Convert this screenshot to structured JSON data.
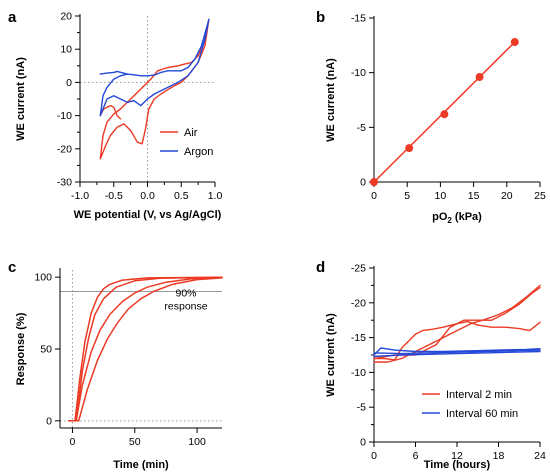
{
  "colors": {
    "red": "#ec3a25",
    "blue": "#2448d8",
    "ref": "#9a9a9a",
    "axis": "#000000"
  },
  "chart_data": [
    {
      "panel": "a",
      "type": "line",
      "xlabel": "WE potential (V, vs Ag/AgCl)",
      "ylabel": "WE current (nA)",
      "xlim": [
        -1.0,
        1.0
      ],
      "ylim": [
        -30,
        20
      ],
      "xticks": [
        -1.0,
        -0.5,
        0.0,
        0.5,
        1.0
      ],
      "xtick_labels": [
        "-1.0",
        "-0.5",
        "0.0",
        "0.5",
        "1.0"
      ],
      "yticks": [
        -30,
        -20,
        -10,
        0,
        10,
        20
      ],
      "ytick_labels": [
        "-30",
        "-20",
        "-10",
        "0",
        "10",
        "20"
      ],
      "legend": "bottom-right",
      "series": [
        {
          "name": "Air",
          "color": "red",
          "curves": [
            [
              [
                -0.7,
                -23
              ],
              [
                -0.66,
                -16
              ],
              [
                -0.6,
                -12
              ],
              [
                -0.5,
                -9.5
              ],
              [
                -0.4,
                -8
              ],
              [
                -0.3,
                -6
              ],
              [
                -0.2,
                -4
              ],
              [
                -0.1,
                -2
              ],
              [
                0.0,
                0
              ],
              [
                0.05,
                1
              ],
              [
                0.15,
                3.5
              ],
              [
                0.3,
                4.5
              ],
              [
                0.45,
                5
              ],
              [
                0.55,
                5.5
              ],
              [
                0.65,
                6
              ],
              [
                0.75,
                8
              ],
              [
                0.85,
                13
              ],
              [
                0.91,
                19
              ],
              [
                0.85,
                11
              ],
              [
                0.75,
                6
              ],
              [
                0.6,
                2
              ],
              [
                0.5,
                0
              ],
              [
                0.4,
                -1
              ],
              [
                0.3,
                -2.2
              ],
              [
                0.2,
                -3.5
              ],
              [
                0.1,
                -5
              ],
              [
                0.02,
                -8
              ],
              [
                -0.03,
                -14
              ],
              [
                -0.08,
                -18.5
              ],
              [
                -0.15,
                -18
              ],
              [
                -0.25,
                -14.5
              ],
              [
                -0.35,
                -12.5
              ],
              [
                -0.45,
                -13.5
              ],
              [
                -0.55,
                -16
              ],
              [
                -0.62,
                -19
              ],
              [
                -0.7,
                -23
              ]
            ],
            [
              [
                -0.7,
                -10
              ],
              [
                -0.65,
                -8
              ],
              [
                -0.55,
                -7
              ],
              [
                -0.5,
                -7.5
              ],
              [
                -0.45,
                -10
              ],
              [
                -0.4,
                -11
              ]
            ]
          ]
        },
        {
          "name": "Argon",
          "color": "blue",
          "curves": [
            [
              [
                -0.7,
                -10
              ],
              [
                -0.66,
                -4
              ],
              [
                -0.6,
                -1.5
              ],
              [
                -0.5,
                1
              ],
              [
                -0.4,
                2
              ],
              [
                -0.3,
                2.5
              ],
              [
                -0.2,
                2.3
              ],
              [
                -0.1,
                2
              ],
              [
                0.0,
                2
              ],
              [
                0.1,
                2.2
              ],
              [
                0.2,
                3
              ],
              [
                0.3,
                3.5
              ],
              [
                0.4,
                3.5
              ],
              [
                0.5,
                3.5
              ],
              [
                0.6,
                4.5
              ],
              [
                0.7,
                7
              ],
              [
                0.8,
                11
              ],
              [
                0.91,
                19
              ],
              [
                0.85,
                13
              ],
              [
                0.75,
                6
              ],
              [
                0.6,
                2
              ],
              [
                0.45,
                0
              ],
              [
                0.3,
                -1.5
              ],
              [
                0.2,
                -2.5
              ],
              [
                0.1,
                -3.5
              ],
              [
                0.0,
                -5
              ],
              [
                -0.1,
                -7
              ],
              [
                -0.2,
                -5.5
              ],
              [
                -0.3,
                -6
              ],
              [
                -0.4,
                -5
              ],
              [
                -0.5,
                -4
              ],
              [
                -0.6,
                -5
              ],
              [
                -0.66,
                -8
              ],
              [
                -0.7,
                -10
              ]
            ],
            [
              [
                -0.7,
                2.5
              ],
              [
                -0.6,
                2.8
              ],
              [
                -0.5,
                3
              ],
              [
                -0.45,
                3.3
              ],
              [
                -0.3,
                2.5
              ]
            ]
          ]
        }
      ],
      "ref_lines": [
        {
          "x": 0
        },
        {
          "y": 0
        }
      ]
    },
    {
      "panel": "b",
      "type": "scatter",
      "xlabel": "pO",
      "xlabel_sub": "2",
      "xlabel_tail": " (kPa)",
      "ylabel": "WE current (nA)",
      "xlim": [
        0,
        25
      ],
      "ylim": [
        0,
        -15
      ],
      "xticks": [
        0,
        5,
        10,
        15,
        20,
        25
      ],
      "xtick_labels": [
        "0",
        "5",
        "10",
        "15",
        "20",
        "25"
      ],
      "yticks": [
        0,
        -5,
        -10,
        -15
      ],
      "ytick_labels": [
        "0",
        "-5",
        "-10",
        "-15"
      ],
      "x": [
        0,
        5.3,
        10.6,
        15.9,
        21.2
      ],
      "y": [
        0,
        -3.1,
        -6.2,
        -9.6,
        -12.8
      ],
      "fit": [
        [
          0,
          0
        ],
        [
          21.2,
          -12.8
        ]
      ],
      "color": "red"
    },
    {
      "panel": "c",
      "type": "line",
      "xlabel": "Time (min)",
      "ylabel": "Response (%)",
      "xlim": [
        -10,
        120
      ],
      "ylim": [
        -5,
        105
      ],
      "xticks": [
        0,
        50,
        100
      ],
      "xtick_labels": [
        "0",
        "50",
        "100"
      ],
      "yticks": [
        0,
        50,
        100
      ],
      "ytick_labels": [
        "0",
        "50",
        "100"
      ],
      "annotation": [
        "90%",
        "response"
      ],
      "ref_lines": [
        {
          "x": 0
        },
        {
          "y": 0
        },
        {
          "y": 90
        }
      ],
      "color": "red",
      "series": [
        {
          "values": [
            [
              -3,
              0
            ],
            [
              2,
              0
            ],
            [
              6,
              30
            ],
            [
              10,
              55
            ],
            [
              15,
              75
            ],
            [
              20,
              86
            ],
            [
              25,
              92
            ],
            [
              30,
              95
            ],
            [
              40,
              98
            ],
            [
              60,
              99.5
            ],
            [
              120,
              100
            ]
          ]
        },
        {
          "values": [
            [
              -3,
              0
            ],
            [
              3,
              0
            ],
            [
              8,
              35
            ],
            [
              13,
              58
            ],
            [
              18,
              74
            ],
            [
              25,
              85
            ],
            [
              35,
              93
            ],
            [
              50,
              97.5
            ],
            [
              70,
              99.3
            ],
            [
              120,
              100
            ]
          ]
        },
        {
          "values": [
            [
              -3,
              0
            ],
            [
              3,
              0
            ],
            [
              8,
              25
            ],
            [
              15,
              48
            ],
            [
              22,
              63
            ],
            [
              30,
              74
            ],
            [
              40,
              83
            ],
            [
              50,
              89
            ],
            [
              60,
              93
            ],
            [
              75,
              96.5
            ],
            [
              95,
              98.8
            ],
            [
              120,
              100
            ]
          ]
        },
        {
          "values": [
            [
              -3,
              0
            ],
            [
              5,
              0
            ],
            [
              12,
              22
            ],
            [
              20,
              42
            ],
            [
              28,
              57
            ],
            [
              36,
              68
            ],
            [
              45,
              78
            ],
            [
              55,
              85
            ],
            [
              65,
              90
            ],
            [
              80,
              95
            ],
            [
              100,
              98.3
            ],
            [
              120,
              99.5
            ]
          ]
        }
      ]
    },
    {
      "panel": "d",
      "type": "line",
      "xlabel": "Time (hours)",
      "ylabel": "WE current (nA)",
      "xlim": [
        0,
        24
      ],
      "ylim": [
        0,
        -25
      ],
      "xticks": [
        0,
        6,
        12,
        18,
        24
      ],
      "xtick_labels": [
        "0",
        "6",
        "12",
        "18",
        "24"
      ],
      "yticks": [
        0,
        -5,
        -10,
        -15,
        -20,
        -25
      ],
      "ytick_labels": [
        "0",
        "-5",
        "-10",
        "-15",
        "-20",
        "-25"
      ],
      "legend": "bottom-right",
      "series": [
        {
          "name": "Interval 2 min",
          "color": "red",
          "curves": [
            [
              [
                0,
                -12
              ],
              [
                1.5,
                -12
              ],
              [
                3,
                -11.8
              ],
              [
                4,
                -13.5
              ],
              [
                5,
                -14.5
              ],
              [
                6,
                -15.5
              ],
              [
                7,
                -16
              ],
              [
                8.5,
                -16.2
              ],
              [
                10,
                -16.5
              ],
              [
                12,
                -17
              ],
              [
                13.5,
                -17.3
              ],
              [
                15,
                -16.8
              ],
              [
                17,
                -16.5
              ],
              [
                19,
                -16.5
              ],
              [
                21,
                -16.3
              ],
              [
                22.5,
                -16
              ],
              [
                24,
                -17.2
              ]
            ],
            [
              [
                0,
                -11.5
              ],
              [
                2,
                -11.5
              ],
              [
                4,
                -12
              ],
              [
                6,
                -13
              ],
              [
                8,
                -14
              ],
              [
                10,
                -15
              ],
              [
                12,
                -16
              ],
              [
                14,
                -17
              ],
              [
                16,
                -17.6
              ],
              [
                18,
                -18.3
              ],
              [
                20,
                -19.3
              ],
              [
                22,
                -20.8
              ],
              [
                24,
                -22.5
              ]
            ],
            [
              [
                0,
                -12
              ],
              [
                3,
                -12.5
              ],
              [
                6,
                -12.5
              ],
              [
                9,
                -14
              ],
              [
                11,
                -16.5
              ],
              [
                13,
                -17.5
              ],
              [
                15,
                -17.5
              ],
              [
                17,
                -17.5
              ],
              [
                19,
                -18.5
              ],
              [
                21,
                -19.8
              ],
              [
                23,
                -21.5
              ],
              [
                24,
                -22.2
              ]
            ]
          ]
        },
        {
          "name": "Interval 60 min",
          "color": "blue",
          "curves": [
            [
              [
                0,
                -12.8
              ],
              [
                4,
                -12.7
              ],
              [
                8,
                -12.8
              ],
              [
                12,
                -12.9
              ],
              [
                16,
                -13
              ],
              [
                20,
                -13.1
              ],
              [
                24,
                -13.2
              ]
            ],
            [
              [
                0,
                -12.5
              ],
              [
                1,
                -13.5
              ],
              [
                3,
                -13.2
              ],
              [
                6,
                -13
              ],
              [
                10,
                -13
              ],
              [
                14,
                -13.1
              ],
              [
                18,
                -13.2
              ],
              [
                22,
                -13.3
              ],
              [
                24,
                -13.4
              ]
            ],
            [
              [
                0,
                -12.3
              ],
              [
                4,
                -12.5
              ],
              [
                8,
                -12.6
              ],
              [
                12,
                -12.7
              ],
              [
                16,
                -12.8
              ],
              [
                20,
                -12.9
              ],
              [
                24,
                -13
              ]
            ]
          ]
        }
      ]
    }
  ]
}
